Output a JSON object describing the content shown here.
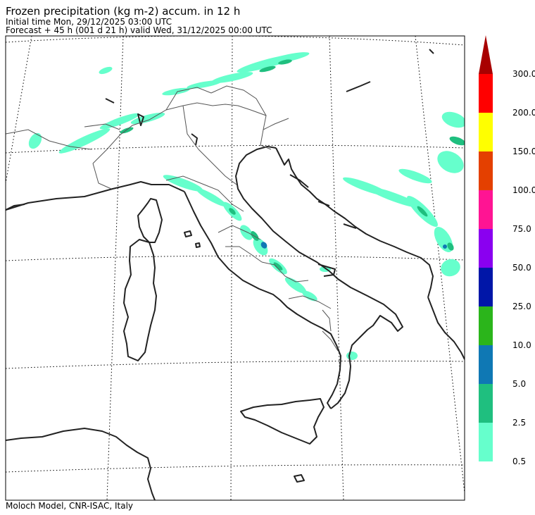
{
  "header": {
    "title": "Frozen precipitation (kg m-2) accum. in 12 h",
    "initial_time": "Initial time  Mon, 29/12/2025  03:00 UTC",
    "forecast": "Forecast  +  45 h  (001 d 21 h)  valid Wed, 31/12/2025 00:00 UTC"
  },
  "footer": {
    "credit": "Moloch Model, CNR-ISAC, Italy"
  },
  "legend": {
    "levels": [
      {
        "label": "0.5",
        "color": "#66ffcc"
      },
      {
        "label": "2.5",
        "color": "#1fbf7f"
      },
      {
        "label": "5.0",
        "color": "#0f78b4"
      },
      {
        "label": "10.0",
        "color": "#2bb51b"
      },
      {
        "label": "25.0",
        "color": "#0016a8"
      },
      {
        "label": "50.0",
        "color": "#8a00f0"
      },
      {
        "label": "75.0",
        "color": "#ff1493"
      },
      {
        "label": "100.0",
        "color": "#e44000"
      },
      {
        "label": "150.0",
        "color": "#ffff00"
      },
      {
        "label": "200.0",
        "color": "#ff0000"
      },
      {
        "label": "300.0",
        "color": "#a80000"
      }
    ]
  },
  "map": {
    "coastline_color": "#222222",
    "border_color": "#555555",
    "grid_color": "#000000"
  }
}
